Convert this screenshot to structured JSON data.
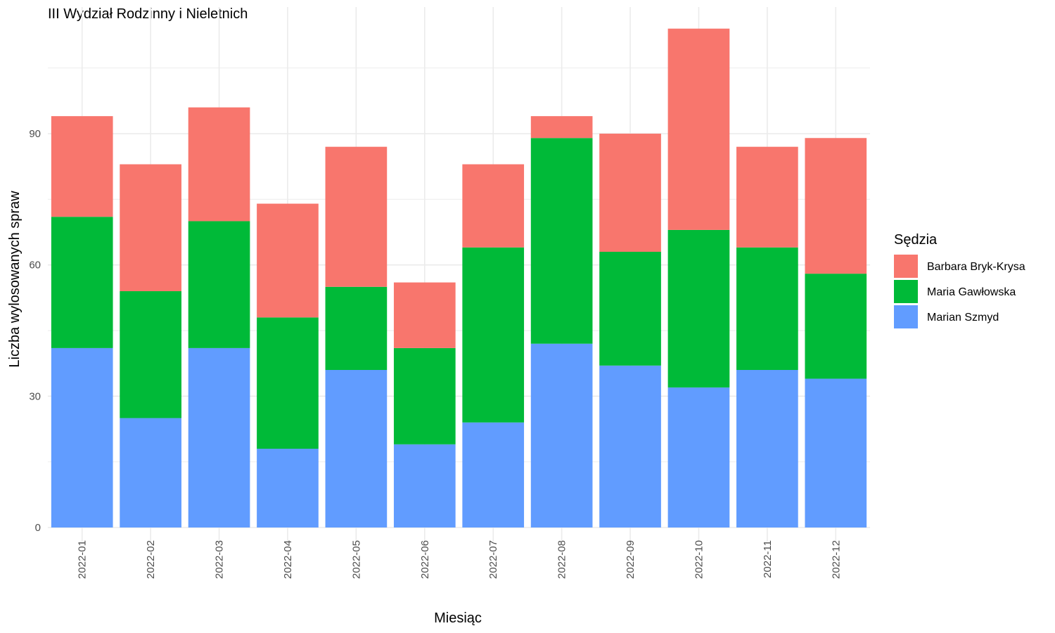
{
  "chart_data": {
    "type": "bar",
    "stacked": true,
    "title": "III Wydział Rodzinny i Nieletnich",
    "xlabel": "Miesiąc",
    "ylabel": "Liczba wylosowanych spraw",
    "ylim": [
      0,
      115
    ],
    "yticks": [
      0,
      30,
      60,
      90
    ],
    "grid": true,
    "categories": [
      "2022-01",
      "2022-02",
      "2022-03",
      "2022-04",
      "2022-05",
      "2022-06",
      "2022-07",
      "2022-08",
      "2022-09",
      "2022-10",
      "2022-11",
      "2022-12"
    ],
    "legend": {
      "title": "Sędzia",
      "position": "right"
    },
    "series": [
      {
        "name": "Marian Szmyd",
        "color": "#619CFF",
        "values": [
          41,
          25,
          41,
          18,
          36,
          19,
          24,
          42,
          37,
          32,
          36,
          34
        ]
      },
      {
        "name": "Maria Gawłowska",
        "color": "#00BA38",
        "values": [
          30,
          29,
          29,
          30,
          19,
          22,
          40,
          47,
          26,
          36,
          28,
          24
        ]
      },
      {
        "name": "Barbara Bryk-Krysa",
        "color": "#F8766D",
        "values": [
          23,
          29,
          26,
          26,
          32,
          15,
          19,
          5,
          27,
          46,
          23,
          31
        ]
      }
    ],
    "legend_order": [
      "Barbara Bryk-Krysa",
      "Maria Gawłowska",
      "Marian Szmyd"
    ]
  }
}
